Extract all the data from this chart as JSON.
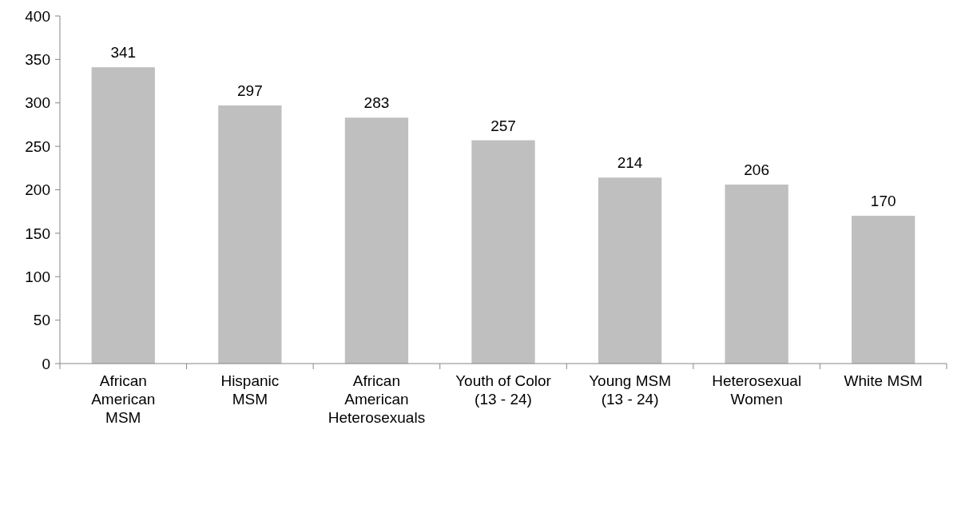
{
  "chart_data": {
    "type": "bar",
    "categories": [
      "African\nAmerican\nMSM",
      "Hispanic\nMSM",
      "African\nAmerican\nHeterosexuals",
      "Youth of Color\n(13 - 24)",
      "Young MSM\n(13 - 24)",
      "Heterosexual\nWomen",
      "White MSM"
    ],
    "values": [
      341,
      297,
      283,
      257,
      214,
      206,
      170
    ],
    "color": "#bfbfbf",
    "ylim": [
      0,
      400
    ],
    "yticks": [
      0,
      50,
      100,
      150,
      200,
      250,
      300,
      350,
      400
    ],
    "data_labels": true
  }
}
